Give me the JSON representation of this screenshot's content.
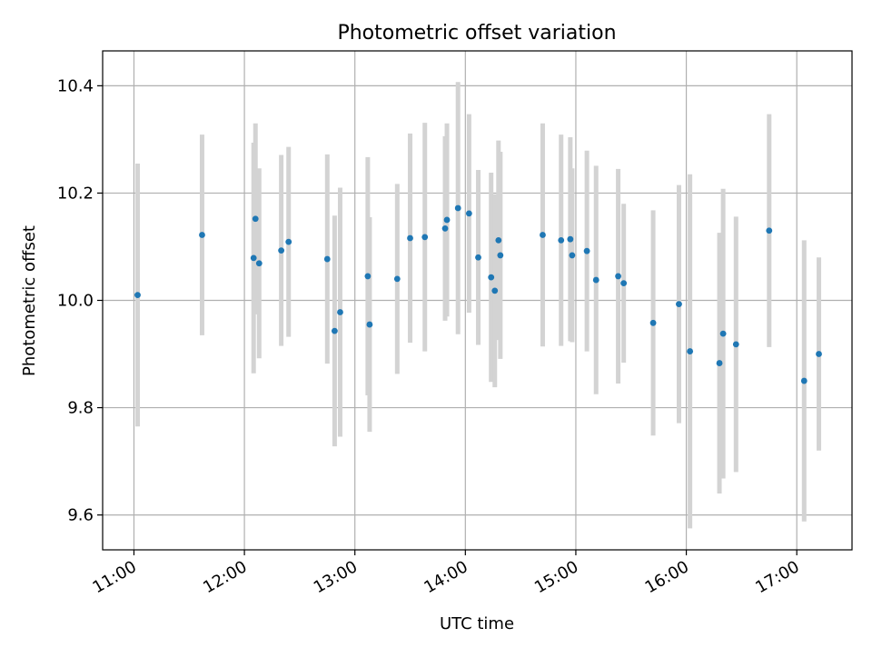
{
  "chart_data": {
    "type": "scatter",
    "title": "Photometric offset variation",
    "xlabel": "UTC time",
    "ylabel": "Photometric offset",
    "xlim": [
      "10:43",
      "17:30"
    ],
    "ylim": [
      9.535,
      10.465
    ],
    "x_ticks": [
      "11:00",
      "12:00",
      "13:00",
      "14:00",
      "15:00",
      "16:00",
      "17:00"
    ],
    "y_ticks": [
      "9.6",
      "9.8",
      "10.0",
      "10.2",
      "10.4"
    ],
    "grid": true,
    "point_color": "#1f77b4",
    "errorbar_color": "#d3d3d3",
    "points": [
      {
        "t": "11:02",
        "y": 10.01,
        "err": 0.245
      },
      {
        "t": "11:37",
        "y": 10.122,
        "err": 0.187
      },
      {
        "t": "12:05",
        "y": 10.079,
        "err": 0.215
      },
      {
        "t": "12:06",
        "y": 10.152,
        "err": 0.178
      },
      {
        "t": "12:08",
        "y": 10.069,
        "err": 0.177
      },
      {
        "t": "12:20",
        "y": 10.093,
        "err": 0.178
      },
      {
        "t": "12:24",
        "y": 10.109,
        "err": 0.177
      },
      {
        "t": "12:45",
        "y": 10.077,
        "err": 0.195
      },
      {
        "t": "12:49",
        "y": 9.943,
        "err": 0.215
      },
      {
        "t": "12:52",
        "y": 9.978,
        "err": 0.232
      },
      {
        "t": "13:07",
        "y": 10.045,
        "err": 0.222
      },
      {
        "t": "13:08",
        "y": 9.955,
        "err": 0.2
      },
      {
        "t": "13:23",
        "y": 10.04,
        "err": 0.177
      },
      {
        "t": "13:30",
        "y": 10.116,
        "err": 0.195
      },
      {
        "t": "13:38",
        "y": 10.118,
        "err": 0.213
      },
      {
        "t": "13:49",
        "y": 10.134,
        "err": 0.172
      },
      {
        "t": "13:50",
        "y": 10.15,
        "err": 0.18
      },
      {
        "t": "13:56",
        "y": 10.172,
        "err": 0.235
      },
      {
        "t": "14:02",
        "y": 10.162,
        "err": 0.185
      },
      {
        "t": "14:07",
        "y": 10.08,
        "err": 0.163
      },
      {
        "t": "14:14",
        "y": 10.043,
        "err": 0.195
      },
      {
        "t": "14:16",
        "y": 10.018,
        "err": 0.18
      },
      {
        "t": "14:18",
        "y": 10.112,
        "err": 0.186
      },
      {
        "t": "14:19",
        "y": 10.084,
        "err": 0.193
      },
      {
        "t": "14:42",
        "y": 10.122,
        "err": 0.208
      },
      {
        "t": "14:52",
        "y": 10.112,
        "err": 0.197
      },
      {
        "t": "14:57",
        "y": 10.114,
        "err": 0.19
      },
      {
        "t": "14:58",
        "y": 10.084,
        "err": 0.162
      },
      {
        "t": "15:06",
        "y": 10.092,
        "err": 0.187
      },
      {
        "t": "15:11",
        "y": 10.038,
        "err": 0.213
      },
      {
        "t": "15:23",
        "y": 10.045,
        "err": 0.2
      },
      {
        "t": "15:26",
        "y": 10.032,
        "err": 0.148
      },
      {
        "t": "15:42",
        "y": 9.958,
        "err": 0.21
      },
      {
        "t": "15:56",
        "y": 9.993,
        "err": 0.222
      },
      {
        "t": "16:02",
        "y": 9.905,
        "err": 0.33
      },
      {
        "t": "16:18",
        "y": 9.883,
        "err": 0.243
      },
      {
        "t": "16:20",
        "y": 9.938,
        "err": 0.27
      },
      {
        "t": "16:27",
        "y": 9.918,
        "err": 0.238
      },
      {
        "t": "16:45",
        "y": 10.13,
        "err": 0.217
      },
      {
        "t": "17:04",
        "y": 9.85,
        "err": 0.262
      },
      {
        "t": "17:12",
        "y": 9.9,
        "err": 0.18
      }
    ]
  }
}
